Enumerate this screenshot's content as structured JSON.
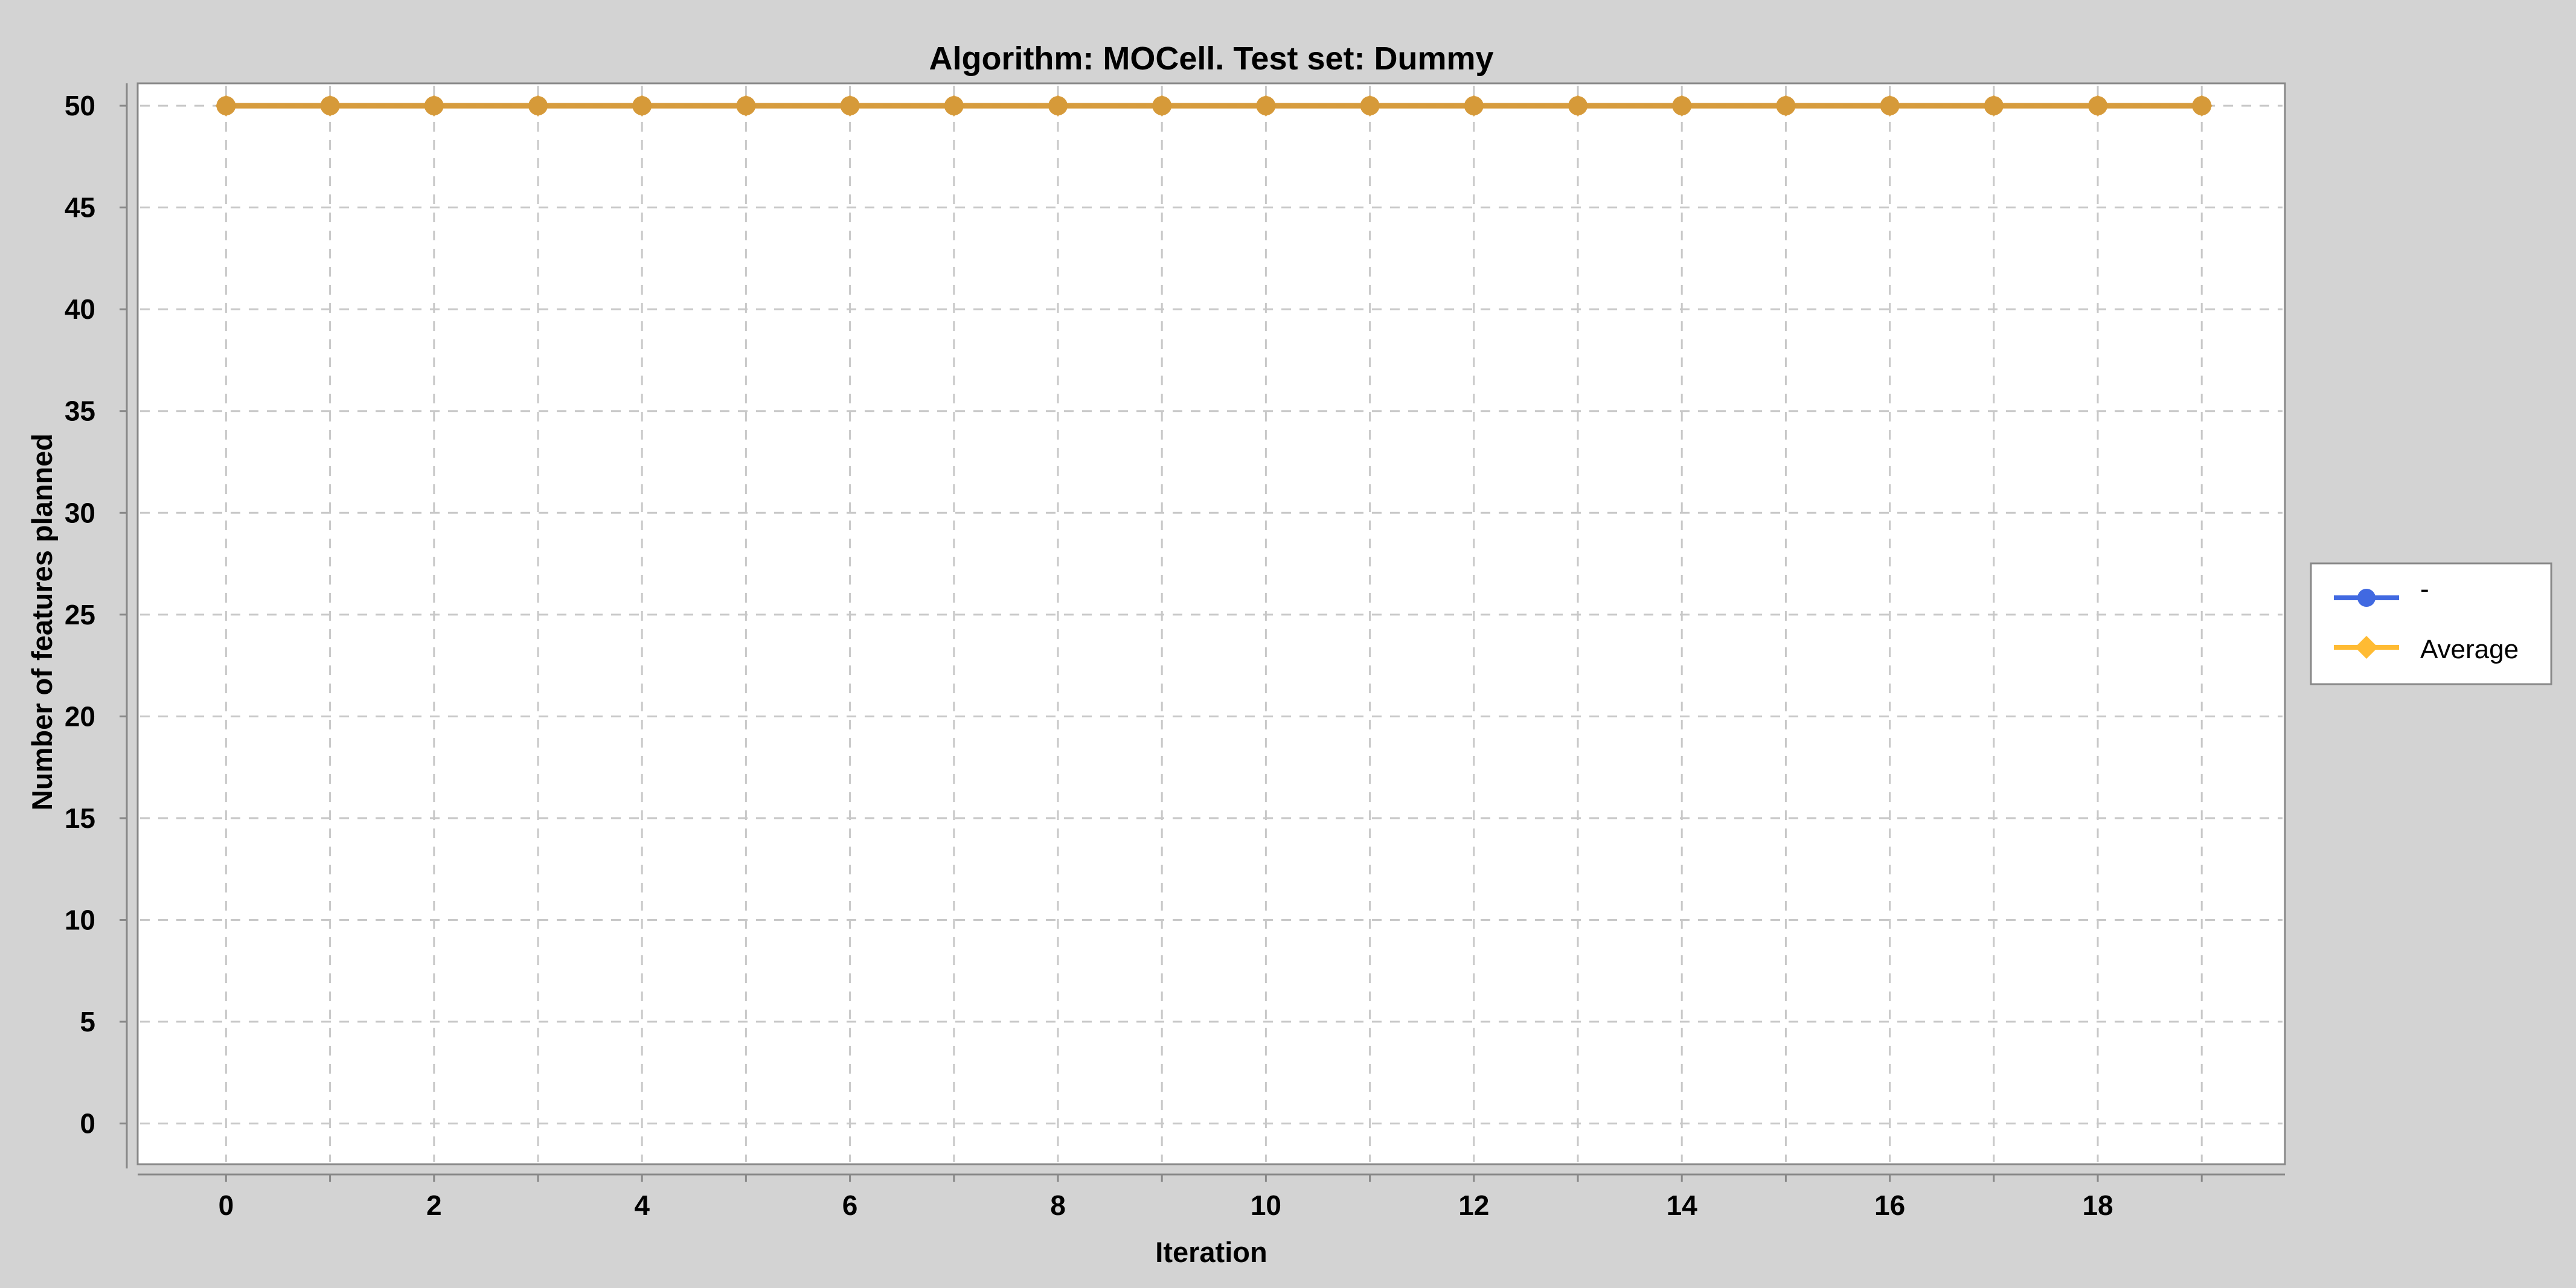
{
  "chart_data": {
    "type": "line",
    "title": "Algorithm: MOCell. Test set: Dummy",
    "xlabel": "Iteration",
    "ylabel": "Number of features planned",
    "x": [
      0,
      1,
      2,
      3,
      4,
      5,
      6,
      7,
      8,
      9,
      10,
      11,
      12,
      13,
      14,
      15,
      16,
      17,
      18,
      19
    ],
    "x_ticks": [
      0,
      2,
      4,
      6,
      8,
      10,
      12,
      14,
      16,
      18
    ],
    "y_ticks": [
      0,
      5,
      10,
      15,
      20,
      25,
      30,
      35,
      40,
      45,
      50
    ],
    "xlim": [
      -0.85,
      19.8
    ],
    "ylim": [
      -2,
      51.1
    ],
    "grid": true,
    "legend_position": "right",
    "series": [
      {
        "name": "-",
        "color": "#4169e1",
        "marker": "circle",
        "values": [
          50,
          50,
          50,
          50,
          50,
          50,
          50,
          50,
          50,
          50,
          50,
          50,
          50,
          50,
          50,
          50,
          50,
          50,
          50,
          50
        ]
      },
      {
        "name": "Average",
        "color": "#ffbb33",
        "marker": "diamond",
        "values": [
          50,
          50,
          50,
          50,
          50,
          50,
          50,
          50,
          50,
          50,
          50,
          50,
          50,
          50,
          50,
          50,
          50,
          50,
          50,
          50
        ]
      }
    ],
    "overlap_color": "#d69a3a"
  }
}
